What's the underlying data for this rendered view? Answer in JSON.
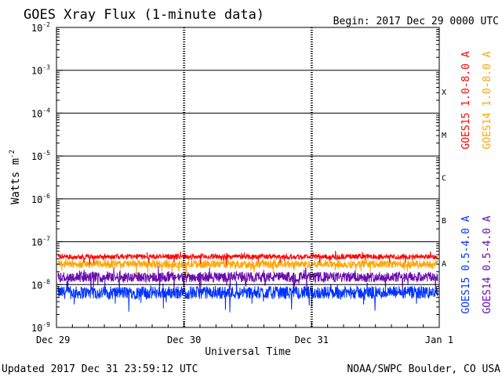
{
  "header": {
    "title": "GOES Xray Flux (1-minute data)",
    "begin": "Begin:  2017 Dec 29 0000 UTC"
  },
  "footer": {
    "updated": "Updated 2017 Dec 31 23:59:12 UTC",
    "credit": "NOAA/SWPC Boulder, CO USA"
  },
  "chart_data": {
    "type": "line",
    "title": "GOES Xray Flux (1-minute data)",
    "xlabel": "Universal Time",
    "ylabel_base": "Watts m",
    "ylabel_exp": "-2",
    "yscale": "log",
    "ylim_exp": [
      -9,
      -2
    ],
    "y_ticks": [
      {
        "base": "10",
        "exp": "-2",
        "value_exp": -2
      },
      {
        "base": "10",
        "exp": "-3",
        "value_exp": -3
      },
      {
        "base": "10",
        "exp": "-4",
        "value_exp": -4
      },
      {
        "base": "10",
        "exp": "-5",
        "value_exp": -5
      },
      {
        "base": "10",
        "exp": "-6",
        "value_exp": -6
      },
      {
        "base": "10",
        "exp": "-7",
        "value_exp": -7
      },
      {
        "base": "10",
        "exp": "-8",
        "value_exp": -8
      },
      {
        "base": "10",
        "exp": "-9",
        "value_exp": -9
      }
    ],
    "x_ticks": [
      "Dec 29",
      "Dec 30",
      "Dec 31",
      "Jan 1"
    ],
    "flare_classes": [
      {
        "label": "X",
        "value_exp": -3.5
      },
      {
        "label": "M",
        "value_exp": -4.5
      },
      {
        "label": "C",
        "value_exp": -5.5
      },
      {
        "label": "B",
        "value_exp": -6.5
      },
      {
        "label": "A",
        "value_exp": -7.5
      }
    ],
    "series": [
      {
        "name": "GOES15 1.0-8.0 A",
        "color": "#ff0000",
        "base_value": 4.5e-08,
        "noise_exp": 0.06
      },
      {
        "name": "GOES14 1.0-8.0 A",
        "color": "#ffa500",
        "base_value": 3e-08,
        "noise_exp": 0.09
      },
      {
        "name": "GOES14 0.5-4.0 A",
        "color": "#6a0dad",
        "base_value": 1.5e-08,
        "noise_exp": 0.12
      },
      {
        "name": "GOES15 0.5-4.0 A",
        "color": "#0033ff",
        "base_value": 6.5e-09,
        "noise_exp": 0.15
      }
    ]
  }
}
